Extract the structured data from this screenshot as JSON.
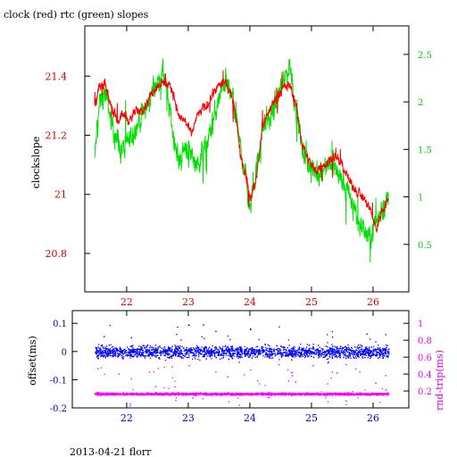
{
  "title": "clock (red) rtc (green) slopes",
  "footer": "2013-04-21 florr",
  "colors": {
    "red": "#ff0000",
    "green": "#00e000",
    "blue": "#0000ff",
    "magenta": "#ff00ff",
    "axis_top_left": "#cc0000",
    "axis_top_right": "#00cc00",
    "axis_bottom": "#0000cc",
    "axis_bottom_right": "#ee00ee"
  },
  "chart_data": [
    {
      "type": "line",
      "title": "clock (red) rtc (green) slopes",
      "xlabel": "",
      "ylabel": "clockslope",
      "xlim": [
        21.32,
        26.58
      ],
      "ylim": [
        20.67,
        21.57
      ],
      "y2lim": [
        0.0,
        2.8
      ],
      "x_ticks": [
        22,
        23,
        24,
        25,
        26
      ],
      "y_ticks": [
        20.8,
        21,
        21.2,
        21.4
      ],
      "y2_ticks": [
        0.5,
        1,
        1.5,
        2,
        2.5
      ],
      "series": [
        {
          "name": "clock",
          "axis": "left",
          "color": "red",
          "x": [
            21.48,
            21.55,
            21.65,
            21.75,
            21.85,
            21.95,
            22.05,
            22.15,
            22.3,
            22.45,
            22.6,
            22.75,
            22.85,
            22.95,
            23.05,
            23.15,
            23.3,
            23.45,
            23.6,
            23.75,
            23.85,
            23.95,
            24.0,
            24.1,
            24.2,
            24.35,
            24.5,
            24.65,
            24.75,
            24.85,
            24.95,
            25.05,
            25.2,
            25.35,
            25.5,
            25.65,
            25.8,
            25.95,
            26.05,
            26.15,
            26.25
          ],
          "values": [
            21.3,
            21.36,
            21.37,
            21.3,
            21.25,
            21.27,
            21.25,
            21.28,
            21.3,
            21.36,
            21.38,
            21.35,
            21.26,
            21.25,
            21.2,
            21.27,
            21.3,
            21.36,
            21.38,
            21.3,
            21.13,
            21.05,
            20.98,
            21.05,
            21.23,
            21.3,
            21.35,
            21.37,
            21.3,
            21.17,
            21.12,
            21.08,
            21.1,
            21.13,
            21.1,
            21.03,
            21.0,
            20.95,
            20.88,
            20.95,
            20.98
          ]
        },
        {
          "name": "rtc",
          "axis": "right",
          "color": "green",
          "x": [
            21.48,
            21.55,
            21.65,
            21.75,
            21.85,
            21.95,
            22.05,
            22.15,
            22.3,
            22.45,
            22.6,
            22.75,
            22.85,
            22.95,
            23.05,
            23.15,
            23.3,
            23.45,
            23.6,
            23.75,
            23.85,
            23.95,
            24.0,
            24.1,
            24.2,
            24.35,
            24.5,
            24.65,
            24.75,
            24.85,
            24.95,
            25.05,
            25.2,
            25.35,
            25.5,
            25.65,
            25.8,
            25.95,
            26.05,
            26.15,
            26.25
          ],
          "values": [
            1.4,
            1.95,
            2.1,
            1.8,
            1.55,
            1.5,
            1.6,
            1.75,
            1.9,
            2.15,
            2.3,
            1.7,
            1.35,
            1.55,
            1.45,
            1.35,
            1.55,
            1.9,
            2.25,
            1.95,
            1.5,
            1.15,
            0.85,
            1.25,
            1.7,
            1.85,
            2.1,
            2.4,
            1.9,
            1.5,
            1.35,
            1.25,
            1.3,
            1.35,
            1.15,
            0.95,
            0.7,
            0.55,
            0.75,
            0.9,
            1.0
          ]
        }
      ]
    },
    {
      "type": "scatter",
      "xlabel": "",
      "ylabel": "offset(ms)",
      "y2label": "rnd-trip(ms)",
      "xlim": [
        21.32,
        26.58
      ],
      "ylim": [
        -0.2,
        0.145
      ],
      "y2lim": [
        0.0,
        1.15
      ],
      "x_ticks": [
        22,
        23,
        24,
        25,
        26
      ],
      "y_ticks": [
        -0.2,
        -0.1,
        0,
        0.1
      ],
      "y2_ticks": [
        0.2,
        0.4,
        0.6,
        0.8,
        1
      ],
      "series": [
        {
          "name": "offset",
          "axis": "left",
          "color": "blue",
          "x_range": [
            21.48,
            26.25
          ],
          "center": 0.0,
          "spread": 0.03
        },
        {
          "name": "rnd-trip",
          "axis": "right",
          "color": "magenta",
          "x_range": [
            21.48,
            26.25
          ],
          "center": 0.17,
          "spread": 0.02
        }
      ]
    }
  ]
}
